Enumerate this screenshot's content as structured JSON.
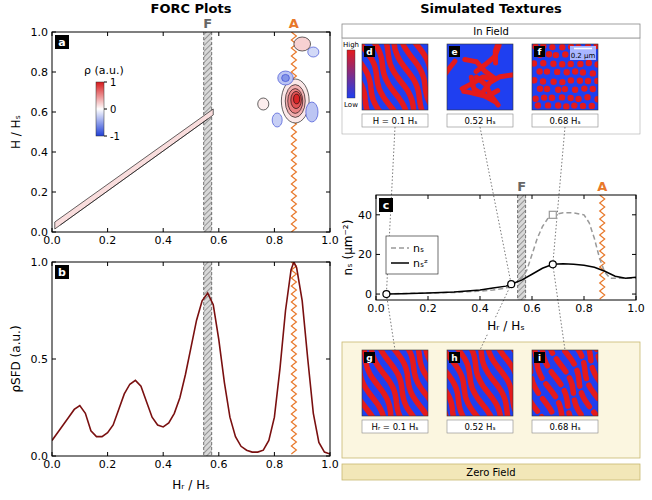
{
  "headers": {
    "forc": "FORC Plots"
  },
  "guides": [
    {
      "x": 0.56,
      "label": "F",
      "color": "#666666",
      "line_style": "band"
    },
    {
      "x": 0.87,
      "label": "A",
      "color": "#e8782a",
      "line_style": "zigzag"
    }
  ],
  "chart_data": [
    {
      "type": "contour",
      "letter": "a",
      "ylabel": "H / Hₛ",
      "xlim": [
        0,
        1
      ],
      "ylim": [
        0,
        1
      ],
      "xticks": [
        {
          "value": 0,
          "label": "0.0"
        },
        {
          "value": 0.2,
          "label": "0.2"
        },
        {
          "value": 0.4,
          "label": "0.4"
        },
        {
          "value": 0.6,
          "label": "0.6"
        },
        {
          "value": 0.8,
          "label": "0.8"
        },
        {
          "value": 1,
          "label": "1.0"
        }
      ],
      "yticks": [
        {
          "value": 0,
          "label": "0.0"
        },
        {
          "value": 0.2,
          "label": "0.2"
        },
        {
          "value": 0.4,
          "label": "0.4"
        },
        {
          "value": 0.6,
          "label": "0.6"
        },
        {
          "value": 0.8,
          "label": "0.8"
        },
        {
          "value": 1,
          "label": "1.0"
        }
      ],
      "colorbar": {
        "label": "ρ (a.u.)",
        "range": [
          -1,
          1
        ],
        "ticks": [
          1,
          0,
          -1
        ],
        "colors": [
          "#1f3fd6",
          "#ffffff",
          "#d7191c"
        ]
      },
      "ridge": {
        "x": [
          0.01,
          0.58
        ],
        "value": 0.15
      },
      "contours": [
        {
          "x": 0.875,
          "y": 0.655,
          "rx": 0.05,
          "ry": 0.11,
          "value": 0.1
        },
        {
          "x": 0.84,
          "y": 0.77,
          "rx": 0.028,
          "ry": 0.035,
          "value": -0.3
        },
        {
          "x": 0.84,
          "y": 0.77,
          "rx": 0.014,
          "ry": 0.018,
          "value": -0.55
        },
        {
          "x": 0.935,
          "y": 0.6,
          "rx": 0.022,
          "ry": 0.05,
          "value": -0.3
        },
        {
          "x": 0.81,
          "y": 0.56,
          "rx": 0.018,
          "ry": 0.035,
          "value": -0.25
        },
        {
          "x": 0.875,
          "y": 0.655,
          "rx": 0.036,
          "ry": 0.082,
          "value": 0.35
        },
        {
          "x": 0.875,
          "y": 0.655,
          "rx": 0.027,
          "ry": 0.062,
          "value": 0.55
        },
        {
          "x": 0.878,
          "y": 0.66,
          "rx": 0.019,
          "ry": 0.043,
          "value": 0.75
        },
        {
          "x": 0.88,
          "y": 0.665,
          "rx": 0.011,
          "ry": 0.024,
          "value": 0.95
        },
        {
          "x": 0.9,
          "y": 0.94,
          "rx": 0.03,
          "ry": 0.035,
          "value": 0.2
        },
        {
          "x": 0.94,
          "y": 0.9,
          "rx": 0.02,
          "ry": 0.025,
          "value": -0.2
        },
        {
          "x": 0.76,
          "y": 0.64,
          "rx": 0.02,
          "ry": 0.03,
          "value": 0.08
        }
      ]
    },
    {
      "type": "line",
      "letter": "b",
      "xlabel": "Hᵣ / Hₛ",
      "ylabel": "ρSFD (a.u.)",
      "xlim": [
        0,
        1
      ],
      "ylim": [
        0,
        1
      ],
      "xticks": [
        {
          "value": 0,
          "label": "0.0"
        },
        {
          "value": 0.2,
          "label": "0.2"
        },
        {
          "value": 0.4,
          "label": "0.4"
        },
        {
          "value": 0.6,
          "label": "0.6"
        },
        {
          "value": 0.8,
          "label": "0.8"
        },
        {
          "value": 1,
          "label": "1.0"
        }
      ],
      "yticks": [
        {
          "value": 0,
          "label": "0.0"
        },
        {
          "value": 0.5,
          "label": "0.5"
        },
        {
          "value": 1,
          "label": "1.0"
        }
      ],
      "series": [
        {
          "color": "#7a1010",
          "x": [
            0,
            0.02,
            0.04,
            0.06,
            0.08,
            0.1,
            0.12,
            0.14,
            0.16,
            0.18,
            0.2,
            0.22,
            0.24,
            0.26,
            0.28,
            0.3,
            0.32,
            0.34,
            0.36,
            0.38,
            0.4,
            0.42,
            0.44,
            0.46,
            0.48,
            0.5,
            0.52,
            0.54,
            0.56,
            0.58,
            0.6,
            0.62,
            0.64,
            0.66,
            0.68,
            0.7,
            0.72,
            0.74,
            0.76,
            0.78,
            0.8,
            0.82,
            0.84,
            0.86,
            0.87,
            0.88,
            0.9,
            0.92,
            0.94,
            0.96,
            0.98,
            1
          ],
          "values": [
            0.08,
            0.12,
            0.16,
            0.2,
            0.24,
            0.26,
            0.22,
            0.13,
            0.1,
            0.1,
            0.12,
            0.16,
            0.24,
            0.32,
            0.37,
            0.39,
            0.36,
            0.28,
            0.2,
            0.16,
            0.15,
            0.17,
            0.22,
            0.3,
            0.42,
            0.56,
            0.7,
            0.8,
            0.84,
            0.78,
            0.6,
            0.38,
            0.2,
            0.1,
            0.05,
            0.03,
            0.02,
            0.02,
            0.03,
            0.08,
            0.2,
            0.45,
            0.75,
            0.96,
            1,
            0.97,
            0.8,
            0.5,
            0.22,
            0.07,
            0.02,
            0.01
          ]
        }
      ]
    },
    {
      "type": "line",
      "letter": "c",
      "xlabel": "Hᵣ / Hₛ",
      "ylabel": "nₛ (μm⁻²)",
      "xlim": [
        0,
        1
      ],
      "ylim": [
        -3,
        50
      ],
      "legend": "lower left",
      "xticks": [
        {
          "value": 0,
          "label": "0.0"
        },
        {
          "value": 0.2,
          "label": "0.2"
        },
        {
          "value": 0.4,
          "label": "0.4"
        },
        {
          "value": 0.6,
          "label": "0.6"
        },
        {
          "value": 0.8,
          "label": "0.8"
        },
        {
          "value": 1,
          "label": "1.0"
        }
      ],
      "yticks": [
        0,
        20,
        40
      ],
      "series": [
        {
          "name": "nₛ",
          "color": "#999999",
          "line_style": "dashed",
          "x": [
            0.04,
            0.1,
            0.2,
            0.3,
            0.4,
            0.45,
            0.5,
            0.53,
            0.56,
            0.58,
            0.6,
            0.62,
            0.64,
            0.66,
            0.68,
            0.72,
            0.76,
            0.8,
            0.82,
            0.84,
            0.86,
            0.88,
            0.9,
            0.95,
            1
          ],
          "values": [
            0,
            0.3,
            0.5,
            0.8,
            1.5,
            2,
            3,
            5,
            8,
            12,
            20,
            28,
            34,
            38,
            40,
            41,
            41,
            40,
            36,
            28,
            18,
            11,
            8,
            8,
            8
          ]
        },
        {
          "name": "nₛᶻ",
          "color": "#000000",
          "line_style": "solid",
          "x": [
            0.04,
            0.1,
            0.2,
            0.3,
            0.4,
            0.45,
            0.5,
            0.52,
            0.56,
            0.6,
            0.64,
            0.68,
            0.72,
            0.76,
            0.8,
            0.84,
            0.88,
            0.92,
            0.96,
            1
          ],
          "values": [
            0,
            0.2,
            0.5,
            1,
            2,
            3,
            4,
            5,
            7,
            10,
            13,
            15,
            15.3,
            15,
            14.5,
            13.5,
            11.5,
            9,
            8,
            8.5
          ]
        },
        {
          "type": "scatter",
          "marker": "circle",
          "color": "#000000",
          "x": [
            0.04,
            0.52,
            0.68
          ],
          "values": [
            0,
            5,
            15
          ]
        },
        {
          "type": "scatter",
          "marker": "square",
          "color": "#999999",
          "x": [
            0.68
          ],
          "values": [
            40
          ]
        }
      ]
    }
  ],
  "textures": {
    "title": "Simulated Textures",
    "colorscale": {
      "high": "High",
      "low": "Low",
      "colors": [
        "#e41a1c",
        "#1f3ff0"
      ]
    },
    "in_field": {
      "title": "In Field",
      "panels": [
        {
          "letter": "d",
          "label": "H = 0.1 Hₛ",
          "type": "stripes"
        },
        {
          "letter": "e",
          "label": "0.52 Hₛ",
          "type": "worms"
        },
        {
          "letter": "f",
          "label": "0.68 Hₛ",
          "type": "bubbles",
          "scale_bar": "0.2 μm"
        }
      ]
    },
    "zero_field": {
      "title": "Zero Field",
      "panels": [
        {
          "letter": "g",
          "label": "Hᵣ = 0.1 Hₛ",
          "type": "stripes"
        },
        {
          "letter": "h",
          "label": "0.52 Hₛ",
          "type": "stripes"
        },
        {
          "letter": "i",
          "label": "0.68 Hₛ",
          "type": "short_stripes"
        }
      ]
    }
  }
}
